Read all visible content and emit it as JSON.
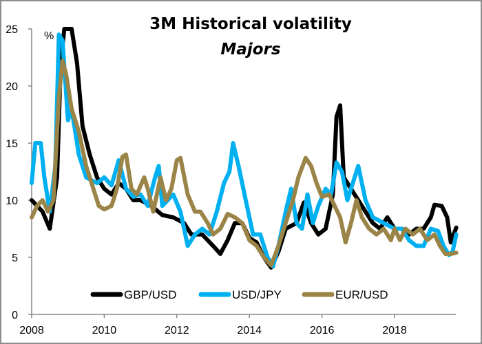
{
  "chart_data": {
    "type": "line",
    "title": "3M Historical volatility",
    "subtitle": "Majors",
    "ylabel": "%",
    "xlabel": "",
    "xlim": [
      2008,
      2019.75
    ],
    "ylim": [
      0,
      25
    ],
    "x_ticks": [
      "2008",
      "2010",
      "2012",
      "2014",
      "2016",
      "2018"
    ],
    "y_ticks": [
      "0",
      "5",
      "10",
      "15",
      "20",
      "25"
    ],
    "grid": false,
    "legend_position": "bottom",
    "series": [
      {
        "name": "GBP/USD",
        "color": "#000000",
        "points": [
          [
            2008,
            10
          ],
          [
            2008.3,
            9
          ],
          [
            2008.5,
            7.5
          ],
          [
            2008.7,
            12
          ],
          [
            2008.8,
            22
          ],
          [
            2008.9,
            25
          ],
          [
            2009.1,
            25
          ],
          [
            2009.25,
            22
          ],
          [
            2009.4,
            16.5
          ],
          [
            2009.6,
            14
          ],
          [
            2009.8,
            12
          ],
          [
            2010,
            11
          ],
          [
            2010.2,
            10.5
          ],
          [
            2010.4,
            11.5
          ],
          [
            2010.6,
            11
          ],
          [
            2010.8,
            10
          ],
          [
            2011,
            10
          ],
          [
            2011.3,
            9.5
          ],
          [
            2011.6,
            8.7
          ],
          [
            2011.9,
            8.5
          ],
          [
            2012.2,
            8
          ],
          [
            2012.4,
            7
          ],
          [
            2012.7,
            7
          ],
          [
            2013,
            6
          ],
          [
            2013.2,
            5.3
          ],
          [
            2013.4,
            6.5
          ],
          [
            2013.6,
            8
          ],
          [
            2013.8,
            8
          ],
          [
            2014,
            6.7
          ],
          [
            2014.2,
            6.3
          ],
          [
            2014.4,
            5
          ],
          [
            2014.6,
            4.1
          ],
          [
            2014.8,
            5.5
          ],
          [
            2015,
            7.5
          ],
          [
            2015.3,
            8
          ],
          [
            2015.5,
            9.8
          ],
          [
            2015.7,
            8
          ],
          [
            2015.9,
            7
          ],
          [
            2016.1,
            7.5
          ],
          [
            2016.3,
            10.5
          ],
          [
            2016.4,
            17.3
          ],
          [
            2016.5,
            18.3
          ],
          [
            2016.6,
            12
          ],
          [
            2016.8,
            11
          ],
          [
            2017,
            10
          ],
          [
            2017.2,
            9
          ],
          [
            2017.4,
            8
          ],
          [
            2017.6,
            7.5
          ],
          [
            2017.8,
            8.5
          ],
          [
            2018,
            7.5
          ],
          [
            2018.2,
            7.5
          ],
          [
            2018.4,
            7
          ],
          [
            2018.6,
            7.5
          ],
          [
            2018.8,
            7.5
          ],
          [
            2019,
            8.5
          ],
          [
            2019.1,
            9.6
          ],
          [
            2019.3,
            9.5
          ],
          [
            2019.45,
            8.5
          ],
          [
            2019.55,
            6.3
          ],
          [
            2019.7,
            7.6
          ]
        ]
      },
      {
        "name": "USD/JPY",
        "color": "#00b0f0",
        "points": [
          [
            2008,
            11.5
          ],
          [
            2008.1,
            15
          ],
          [
            2008.25,
            15
          ],
          [
            2008.35,
            12
          ],
          [
            2008.5,
            9
          ],
          [
            2008.65,
            13
          ],
          [
            2008.75,
            24.5
          ],
          [
            2008.85,
            24
          ],
          [
            2009,
            17
          ],
          [
            2009.1,
            18
          ],
          [
            2009.3,
            14
          ],
          [
            2009.5,
            12
          ],
          [
            2009.8,
            11.5
          ],
          [
            2010,
            12
          ],
          [
            2010.2,
            11.3
          ],
          [
            2010.4,
            13.5
          ],
          [
            2010.6,
            11
          ],
          [
            2010.8,
            10.3
          ],
          [
            2011,
            10.5
          ],
          [
            2011.2,
            9.5
          ],
          [
            2011.4,
            12
          ],
          [
            2011.5,
            13
          ],
          [
            2011.6,
            9.5
          ],
          [
            2011.9,
            10.5
          ],
          [
            2012.1,
            9
          ],
          [
            2012.3,
            6
          ],
          [
            2012.5,
            7
          ],
          [
            2012.7,
            7.5
          ],
          [
            2012.9,
            7
          ],
          [
            2013.1,
            9
          ],
          [
            2013.3,
            11.5
          ],
          [
            2013.45,
            12.5
          ],
          [
            2013.55,
            15
          ],
          [
            2013.7,
            13
          ],
          [
            2013.9,
            10
          ],
          [
            2014.1,
            7
          ],
          [
            2014.3,
            7
          ],
          [
            2014.5,
            5
          ],
          [
            2014.65,
            4.2
          ],
          [
            2014.8,
            6
          ],
          [
            2015,
            9
          ],
          [
            2015.15,
            11
          ],
          [
            2015.3,
            8
          ],
          [
            2015.45,
            7.5
          ],
          [
            2015.6,
            10.5
          ],
          [
            2015.75,
            8
          ],
          [
            2015.9,
            9.5
          ],
          [
            2016.1,
            11
          ],
          [
            2016.25,
            10.5
          ],
          [
            2016.4,
            13.3
          ],
          [
            2016.55,
            12.5
          ],
          [
            2016.7,
            10
          ],
          [
            2016.85,
            11.5
          ],
          [
            2017,
            13
          ],
          [
            2017.2,
            10
          ],
          [
            2017.4,
            8.5
          ],
          [
            2017.7,
            8
          ],
          [
            2018,
            7.5
          ],
          [
            2018.2,
            7.5
          ],
          [
            2018.4,
            6.5
          ],
          [
            2018.6,
            6
          ],
          [
            2018.8,
            6
          ],
          [
            2019,
            7.5
          ],
          [
            2019.2,
            7.3
          ],
          [
            2019.35,
            6
          ],
          [
            2019.5,
            5.2
          ],
          [
            2019.6,
            5.5
          ],
          [
            2019.7,
            7
          ]
        ]
      },
      {
        "name": "EUR/USD",
        "color": "#9b8447",
        "points": [
          [
            2008,
            8.5
          ],
          [
            2008.15,
            9.5
          ],
          [
            2008.3,
            10
          ],
          [
            2008.45,
            9
          ],
          [
            2008.6,
            10
          ],
          [
            2008.75,
            19
          ],
          [
            2008.85,
            22.2
          ],
          [
            2008.95,
            21
          ],
          [
            2009.1,
            18
          ],
          [
            2009.3,
            16
          ],
          [
            2009.5,
            13
          ],
          [
            2009.7,
            11
          ],
          [
            2009.85,
            9.5
          ],
          [
            2010,
            9.2
          ],
          [
            2010.2,
            9.5
          ],
          [
            2010.35,
            11
          ],
          [
            2010.5,
            13.8
          ],
          [
            2010.6,
            14
          ],
          [
            2010.75,
            11
          ],
          [
            2010.9,
            10.5
          ],
          [
            2011.1,
            12
          ],
          [
            2011.2,
            11
          ],
          [
            2011.35,
            9
          ],
          [
            2011.55,
            12
          ],
          [
            2011.7,
            10
          ],
          [
            2011.85,
            11
          ],
          [
            2012,
            13.5
          ],
          [
            2012.1,
            13.7
          ],
          [
            2012.3,
            10.5
          ],
          [
            2012.5,
            9
          ],
          [
            2012.65,
            9
          ],
          [
            2012.85,
            8
          ],
          [
            2013,
            7
          ],
          [
            2013.2,
            7.5
          ],
          [
            2013.4,
            8.8
          ],
          [
            2013.6,
            8.5
          ],
          [
            2013.8,
            8
          ],
          [
            2014,
            6.5
          ],
          [
            2014.2,
            6
          ],
          [
            2014.4,
            5
          ],
          [
            2014.6,
            4.3
          ],
          [
            2014.8,
            6
          ],
          [
            2015,
            8
          ],
          [
            2015.2,
            10
          ],
          [
            2015.35,
            12
          ],
          [
            2015.55,
            13.7
          ],
          [
            2015.7,
            13
          ],
          [
            2015.85,
            11.5
          ],
          [
            2016,
            10.3
          ],
          [
            2016.2,
            10.5
          ],
          [
            2016.35,
            9.5
          ],
          [
            2016.5,
            8.5
          ],
          [
            2016.65,
            6.3
          ],
          [
            2016.8,
            8
          ],
          [
            2016.95,
            10
          ],
          [
            2017.1,
            8.5
          ],
          [
            2017.3,
            7.5
          ],
          [
            2017.5,
            7
          ],
          [
            2017.7,
            7.5
          ],
          [
            2017.9,
            6.5
          ],
          [
            2018,
            7.5
          ],
          [
            2018.15,
            6.5
          ],
          [
            2018.3,
            7.5
          ],
          [
            2018.5,
            7
          ],
          [
            2018.7,
            7.5
          ],
          [
            2018.9,
            6.5
          ],
          [
            2019.1,
            7
          ],
          [
            2019.25,
            6
          ],
          [
            2019.4,
            5.3
          ],
          [
            2019.55,
            5.3
          ],
          [
            2019.7,
            5.4
          ]
        ]
      }
    ]
  }
}
